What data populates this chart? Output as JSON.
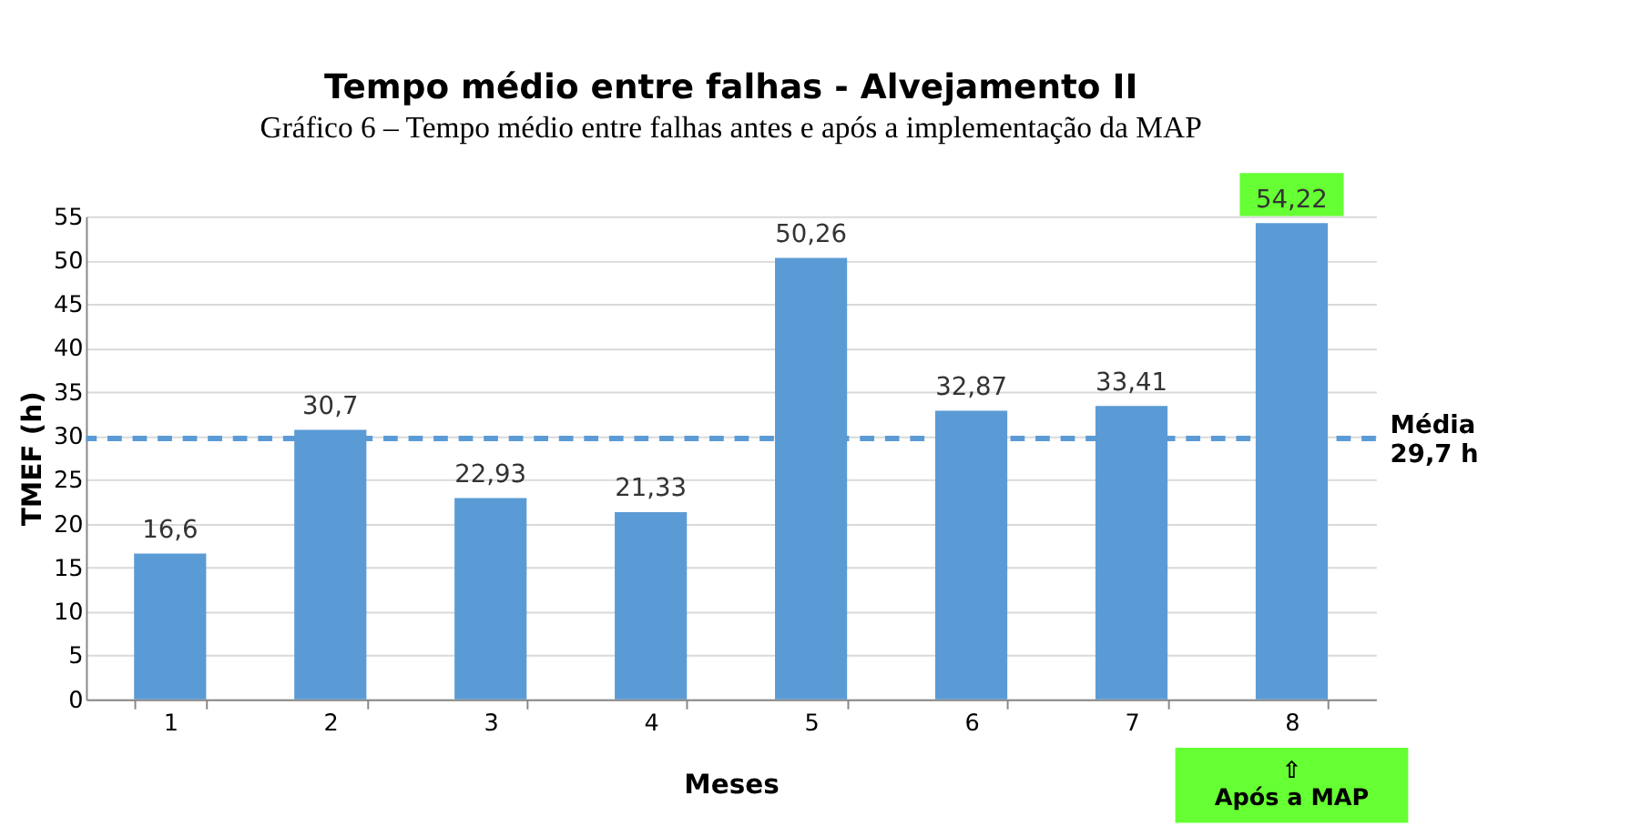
{
  "chart_data": {
    "type": "bar",
    "title": "Tempo médio entre falhas - Alvejamento II",
    "xlabel": "Meses",
    "ylabel": "TMEF (h)",
    "categories": [
      "1",
      "2",
      "3",
      "4",
      "5",
      "6",
      "7",
      "8"
    ],
    "values": [
      16.6,
      30.7,
      22.93,
      21.33,
      50.26,
      32.87,
      33.41,
      54.22
    ],
    "value_labels": [
      "16,6",
      "30,7",
      "22,93",
      "21,33",
      "50,26",
      "32,87",
      "33,41",
      "54,22"
    ],
    "color": "#5b9bd5",
    "ylim": [
      0,
      55
    ],
    "yticks": [
      0,
      5,
      10,
      15,
      20,
      25,
      30,
      35,
      40,
      45,
      50,
      55
    ],
    "grid": "y",
    "ref_lines": [
      {
        "axis": "y",
        "value": 29.7,
        "label": "Média\n29,7 h",
        "color": "#5b9bd5",
        "line_style": "dashed"
      }
    ],
    "annotations": [
      "Gráfico 6 – Tempo médio entre falhas antes e após a implementação da MAP",
      "⇧\nApós a MAP"
    ]
  }
}
